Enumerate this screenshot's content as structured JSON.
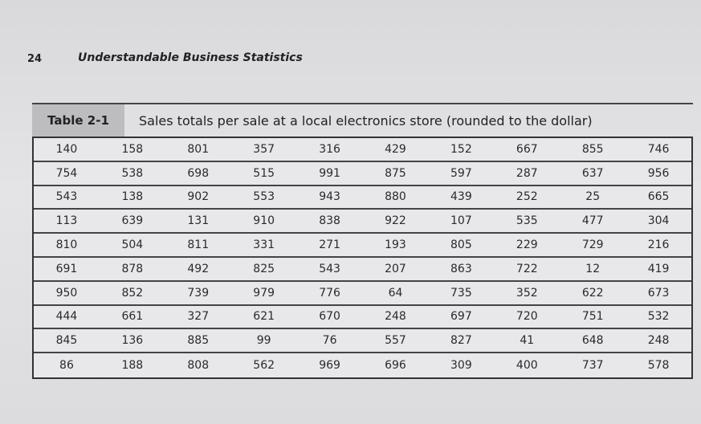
{
  "header": {
    "page_number": "24",
    "running_title": "Understandable Business Statistics"
  },
  "table": {
    "label": "Table 2-1",
    "title": "Sales totals per sale at a local electronics store (rounded to the dollar)",
    "rows": [
      [
        "140",
        "158",
        "801",
        "357",
        "316",
        "429",
        "152",
        "667",
        "855",
        "746"
      ],
      [
        "754",
        "538",
        "698",
        "515",
        "991",
        "875",
        "597",
        "287",
        "637",
        "956"
      ],
      [
        "543",
        "138",
        "902",
        "553",
        "943",
        "880",
        "439",
        "252",
        "25",
        "665"
      ],
      [
        "113",
        "639",
        "131",
        "910",
        "838",
        "922",
        "107",
        "535",
        "477",
        "304"
      ],
      [
        "810",
        "504",
        "811",
        "331",
        "271",
        "193",
        "805",
        "229",
        "729",
        "216"
      ],
      [
        "691",
        "878",
        "492",
        "825",
        "543",
        "207",
        "863",
        "722",
        "12",
        "419"
      ],
      [
        "950",
        "852",
        "739",
        "979",
        "776",
        "64",
        "735",
        "352",
        "622",
        "673"
      ],
      [
        "444",
        "661",
        "327",
        "621",
        "670",
        "248",
        "697",
        "720",
        "751",
        "532"
      ],
      [
        "845",
        "136",
        "885",
        "99",
        "76",
        "557",
        "827",
        "41",
        "648",
        "248"
      ],
      [
        "86",
        "188",
        "808",
        "562",
        "969",
        "696",
        "309",
        "400",
        "737",
        "578"
      ]
    ]
  }
}
